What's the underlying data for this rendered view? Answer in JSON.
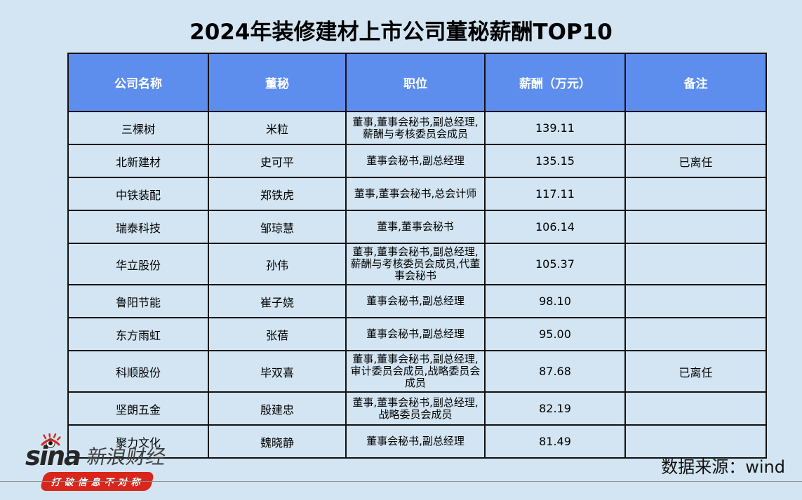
{
  "title": "2024年装修建材上市公司董秘薪酬TOP10",
  "chart_data": {
    "type": "table",
    "title": "2024年装修建材上市公司董秘薪酬TOP10",
    "columns": [
      "公司名称",
      "董秘",
      "职位",
      "薪酬（万元）",
      "备注"
    ],
    "rows": [
      [
        "三棵树",
        "米粒",
        "董事,董事会秘书,副总经理,薪酬与考核委员会成员",
        "139.11",
        ""
      ],
      [
        "北新建材",
        "史可平",
        "董事会秘书,副总经理",
        "135.15",
        "已离任"
      ],
      [
        "中铁装配",
        "郑铁虎",
        "董事,董事会秘书,总会计师",
        "117.11",
        ""
      ],
      [
        "瑞泰科技",
        "邹琼慧",
        "董事,董事会秘书",
        "106.14",
        ""
      ],
      [
        "华立股份",
        "孙伟",
        "董事,董事会秘书,副总经理,薪酬与考核委员会成员,代董事会秘书",
        "105.37",
        ""
      ],
      [
        "鲁阳节能",
        "崔子娆",
        "董事会秘书,副总经理",
        "98.10",
        ""
      ],
      [
        "东方雨虹",
        "张蓓",
        "董事会秘书,副总经理",
        "95.00",
        ""
      ],
      [
        "科顺股份",
        "毕双喜",
        "董事,董事会秘书,副总经理,审计委员会成员,战略委员会成员",
        "87.68",
        "已离任"
      ],
      [
        "坚朗五金",
        "殷建忠",
        "董事,董事会秘书,副总经理,战略委员会成员",
        "82.19",
        ""
      ],
      [
        "聚力文化",
        "魏晓静",
        "董事会秘书,副总经理",
        "81.49",
        ""
      ]
    ],
    "salary_values": [
      139.11,
      135.15,
      117.11,
      106.14,
      105.37,
      98.1,
      95.0,
      87.68,
      82.19,
      81.49
    ]
  },
  "footer": {
    "logo_latin": "sina",
    "logo_cn": "新浪财经",
    "slogan": "打破信息不对称",
    "source": "数据来源：wind"
  },
  "colors": {
    "background": "#d3e5f2",
    "header_bg": "#5d8eee",
    "header_text": "#ffffff",
    "table_border": "#111111",
    "brand_red": "#d9261c",
    "divider": "#909090"
  }
}
